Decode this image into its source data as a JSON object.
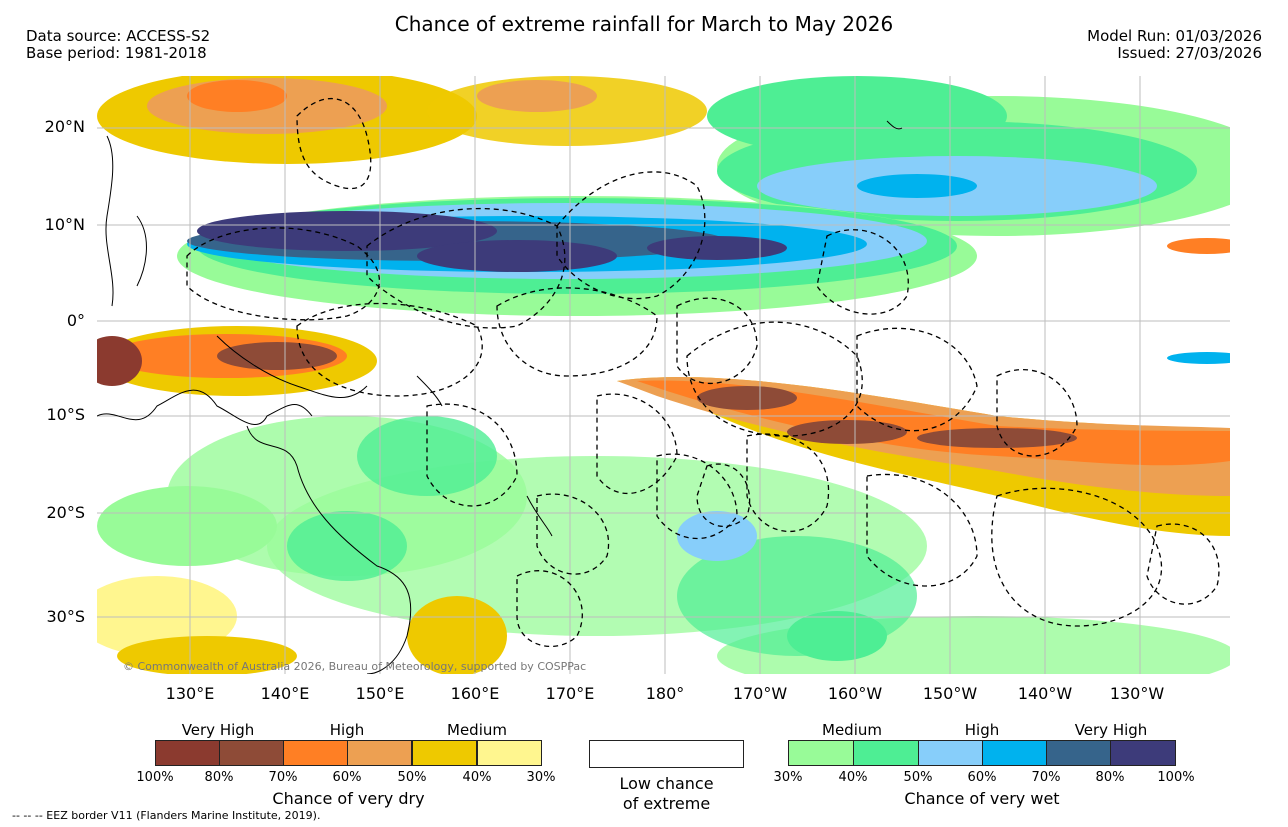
{
  "title": "Chance of extreme rainfall for March to May 2026",
  "header": {
    "data_source": "Data source: ACCESS-S2",
    "base_period": "Base period: 1981-2018",
    "model_run": "Model Run: 01/03/2026",
    "issued": "Issued: 27/03/2026"
  },
  "map": {
    "lat_labels": [
      "20°N",
      "10°N",
      "0°",
      "10°S",
      "20°S",
      "30°S"
    ],
    "lon_labels": [
      "130°E",
      "140°E",
      "150°E",
      "160°E",
      "170°E",
      "180°",
      "170°W",
      "160°W",
      "150°W",
      "140°W",
      "130°W"
    ],
    "copyright": "© Commonwealth of Australia 2026, Bureau of Meteorology, supported by COSPPac"
  },
  "legend": {
    "dry": {
      "levels": [
        "Very High",
        "High",
        "Medium"
      ],
      "ticks": [
        "100%",
        "80%",
        "70%",
        "60%",
        "50%",
        "40%",
        "30%"
      ],
      "colors": [
        "#8b3a2f",
        "#8e4b37",
        "#ff7f24",
        "#eda052",
        "#eec900",
        "#fff68f"
      ],
      "label": "Chance of very dry"
    },
    "low": {
      "label_line1": "Low chance",
      "label_line2": "of extreme"
    },
    "wet": {
      "levels": [
        "Medium",
        "High",
        "Very High"
      ],
      "ticks": [
        "30%",
        "40%",
        "50%",
        "60%",
        "70%",
        "80%",
        "100%"
      ],
      "colors": [
        "#98fb98",
        "#4eee94",
        "#87cefa",
        "#00b2ee",
        "#36648b",
        "#3d3b7a"
      ],
      "label": "Chance of very wet"
    },
    "eez_note": "--  --  -- EEZ border V11 (Flanders Marine Institute, 2019)."
  }
}
